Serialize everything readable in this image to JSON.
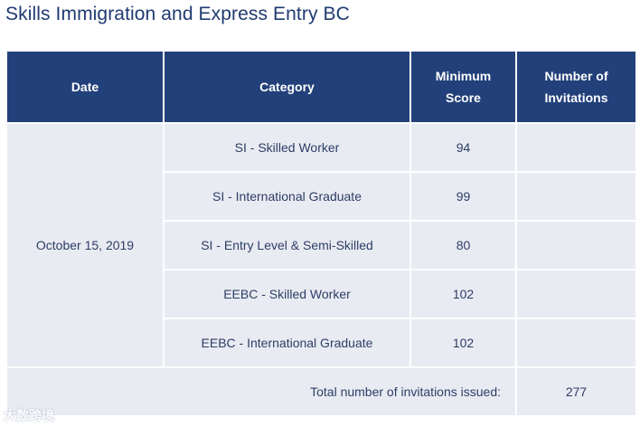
{
  "page": {
    "title": "Skills Immigration and Express Entry BC"
  },
  "table": {
    "headers": {
      "date": "Date",
      "category": "Category",
      "minimum_score_line1": "Minimum",
      "minimum_score_line2": "Score",
      "invitations_line1": "Number of",
      "invitations_line2": "Invitations"
    },
    "date": "October 15, 2019",
    "rows": [
      {
        "category": "SI - Skilled Worker",
        "minimum_score": "94",
        "invitations": ""
      },
      {
        "category": "SI - International Graduate",
        "minimum_score": "99",
        "invitations": ""
      },
      {
        "category": "SI - Entry Level & Semi-Skilled",
        "minimum_score": "80",
        "invitations": ""
      },
      {
        "category": "EEBC - Skilled Worker",
        "minimum_score": "102",
        "invitations": ""
      },
      {
        "category": "EEBC - International Graduate",
        "minimum_score": "102",
        "invitations": ""
      }
    ],
    "total_label": "Total number of invitations issued:",
    "total_value": "277"
  },
  "watermark": {
    "text": "大数跨境"
  },
  "colors": {
    "header_bg": "#22407a",
    "row_bg": "#e9ebf2",
    "title_text": "#1f3a70"
  }
}
